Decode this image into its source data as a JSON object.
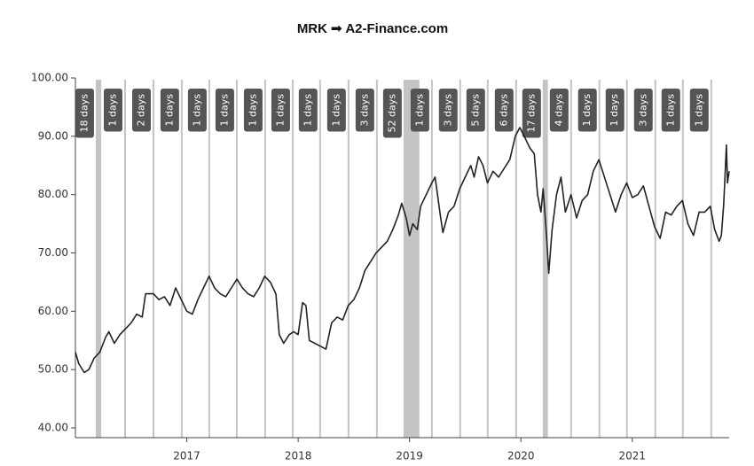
{
  "chart_data": {
    "type": "line",
    "title": "MRK ➟ A2-Finance.com",
    "series": [
      {
        "name": "MRK",
        "color": "#222222",
        "x": [
          2016.0,
          2016.03,
          2016.08,
          2016.12,
          2016.17,
          2016.22,
          2016.27,
          2016.3,
          2016.35,
          2016.4,
          2016.45,
          2016.5,
          2016.55,
          2016.6,
          2016.63,
          2016.7,
          2016.75,
          2016.8,
          2016.85,
          2016.9,
          2016.95,
          2017.0,
          2017.05,
          2017.1,
          2017.15,
          2017.2,
          2017.25,
          2017.3,
          2017.35,
          2017.4,
          2017.45,
          2017.5,
          2017.55,
          2017.6,
          2017.65,
          2017.7,
          2017.75,
          2017.8,
          2017.83,
          2017.87,
          2017.92,
          2017.96,
          2018.0,
          2018.04,
          2018.07,
          2018.1,
          2018.15,
          2018.2,
          2018.25,
          2018.3,
          2018.35,
          2018.4,
          2018.45,
          2018.5,
          2018.55,
          2018.6,
          2018.65,
          2018.7,
          2018.75,
          2018.8,
          2018.85,
          2018.9,
          2018.93,
          2018.97,
          2019.0,
          2019.03,
          2019.07,
          2019.1,
          2019.15,
          2019.2,
          2019.23,
          2019.28,
          2019.3,
          2019.35,
          2019.4,
          2019.45,
          2019.5,
          2019.55,
          2019.58,
          2019.62,
          2019.66,
          2019.7,
          2019.75,
          2019.8,
          2019.85,
          2019.9,
          2019.95,
          2019.99,
          2020.03,
          2020.08,
          2020.12,
          2020.15,
          2020.18,
          2020.2,
          2020.23,
          2020.25,
          2020.28,
          2020.32,
          2020.36,
          2020.4,
          2020.45,
          2020.5,
          2020.55,
          2020.6,
          2020.65,
          2020.7,
          2020.75,
          2020.8,
          2020.85,
          2020.9,
          2020.95,
          2021.0,
          2021.05,
          2021.1,
          2021.15,
          2021.2,
          2021.25,
          2021.3,
          2021.35,
          2021.4,
          2021.45,
          2021.5,
          2021.55,
          2021.6,
          2021.65,
          2021.7,
          2021.74,
          2021.78,
          2021.8,
          2021.82,
          2021.83,
          2021.845,
          2021.855,
          2021.87
        ],
        "values": [
          53,
          51,
          49.5,
          50,
          52,
          53,
          55.5,
          56.5,
          54.5,
          56,
          57,
          58,
          59.5,
          59,
          63,
          63,
          62,
          62.5,
          61,
          64,
          62,
          60,
          59.5,
          62,
          64,
          66,
          64,
          63,
          62.5,
          64,
          65.5,
          64,
          63,
          62.5,
          64,
          66,
          65,
          63,
          56,
          54.5,
          56,
          56.5,
          56,
          61.5,
          61,
          55,
          54.5,
          54,
          53.5,
          58,
          59,
          58.5,
          61,
          62,
          64,
          67,
          68.5,
          70,
          71,
          72,
          74,
          76.5,
          78.5,
          76,
          73,
          75,
          74,
          78,
          80,
          82,
          83,
          76,
          73.5,
          77,
          78,
          81,
          83,
          85,
          83,
          86.5,
          85,
          82,
          84,
          83,
          84.5,
          86,
          90,
          91.5,
          90,
          88,
          87,
          80,
          77,
          81,
          73,
          66.5,
          74,
          80,
          83,
          77,
          80,
          76,
          79,
          80,
          84,
          86,
          83,
          80,
          77,
          80,
          82,
          79.5,
          80,
          81.5,
          78,
          74.5,
          72.5,
          77,
          76.5,
          78,
          79,
          75,
          73,
          77,
          77,
          78,
          74,
          72,
          73,
          78,
          82,
          88.5,
          82,
          84
        ]
      }
    ],
    "periods": [
      {
        "start": 2016.183,
        "days": 18,
        "label": "18 days"
      },
      {
        "start": 2016.438,
        "days": 1,
        "label": "1 days"
      },
      {
        "start": 2016.693,
        "days": 2,
        "label": "2 days"
      },
      {
        "start": 2016.947,
        "days": 1,
        "label": "1 days"
      },
      {
        "start": 2017.194,
        "days": 1,
        "label": "1 days"
      },
      {
        "start": 2017.441,
        "days": 1,
        "label": "1 days"
      },
      {
        "start": 2017.696,
        "days": 1,
        "label": "1 days"
      },
      {
        "start": 2017.943,
        "days": 1,
        "label": "1 days"
      },
      {
        "start": 2018.189,
        "days": 1,
        "label": "1 days"
      },
      {
        "start": 2018.444,
        "days": 1,
        "label": "1 days"
      },
      {
        "start": 2018.699,
        "days": 3,
        "label": "3 days"
      },
      {
        "start": 2018.946,
        "days": 52,
        "label": "52 days"
      },
      {
        "start": 2019.193,
        "days": 1,
        "label": "1 days"
      },
      {
        "start": 2019.447,
        "days": 3,
        "label": "3 days"
      },
      {
        "start": 2019.694,
        "days": 5,
        "label": "5 days"
      },
      {
        "start": 2019.949,
        "days": 6,
        "label": "6 days"
      },
      {
        "start": 2020.196,
        "days": 17,
        "label": "17 days"
      },
      {
        "start": 2020.443,
        "days": 4,
        "label": "4 days"
      },
      {
        "start": 2020.697,
        "days": 1,
        "label": "1 days"
      },
      {
        "start": 2020.944,
        "days": 1,
        "label": "1 days"
      },
      {
        "start": 2021.199,
        "days": 3,
        "label": "3 days"
      },
      {
        "start": 2021.446,
        "days": 1,
        "label": "1 days"
      },
      {
        "start": 2021.701,
        "days": 1,
        "label": "1 days"
      }
    ],
    "period_color": "#c4c4c4",
    "xlim": [
      2016.0,
      2021.87
    ],
    "xticks": [
      2017,
      2018,
      2019,
      2020,
      2021
    ],
    "ylim": [
      40,
      100
    ],
    "yticks": [
      {
        "value": 40,
        "label": "40.00"
      },
      {
        "value": 50,
        "label": "50.00"
      },
      {
        "value": 60,
        "label": "60.00"
      },
      {
        "value": 70,
        "label": "70.00"
      },
      {
        "value": 80,
        "label": "80.00"
      },
      {
        "value": 90,
        "label": "90.00"
      },
      {
        "value": 100,
        "label": "100.00"
      }
    ],
    "grid": false
  }
}
